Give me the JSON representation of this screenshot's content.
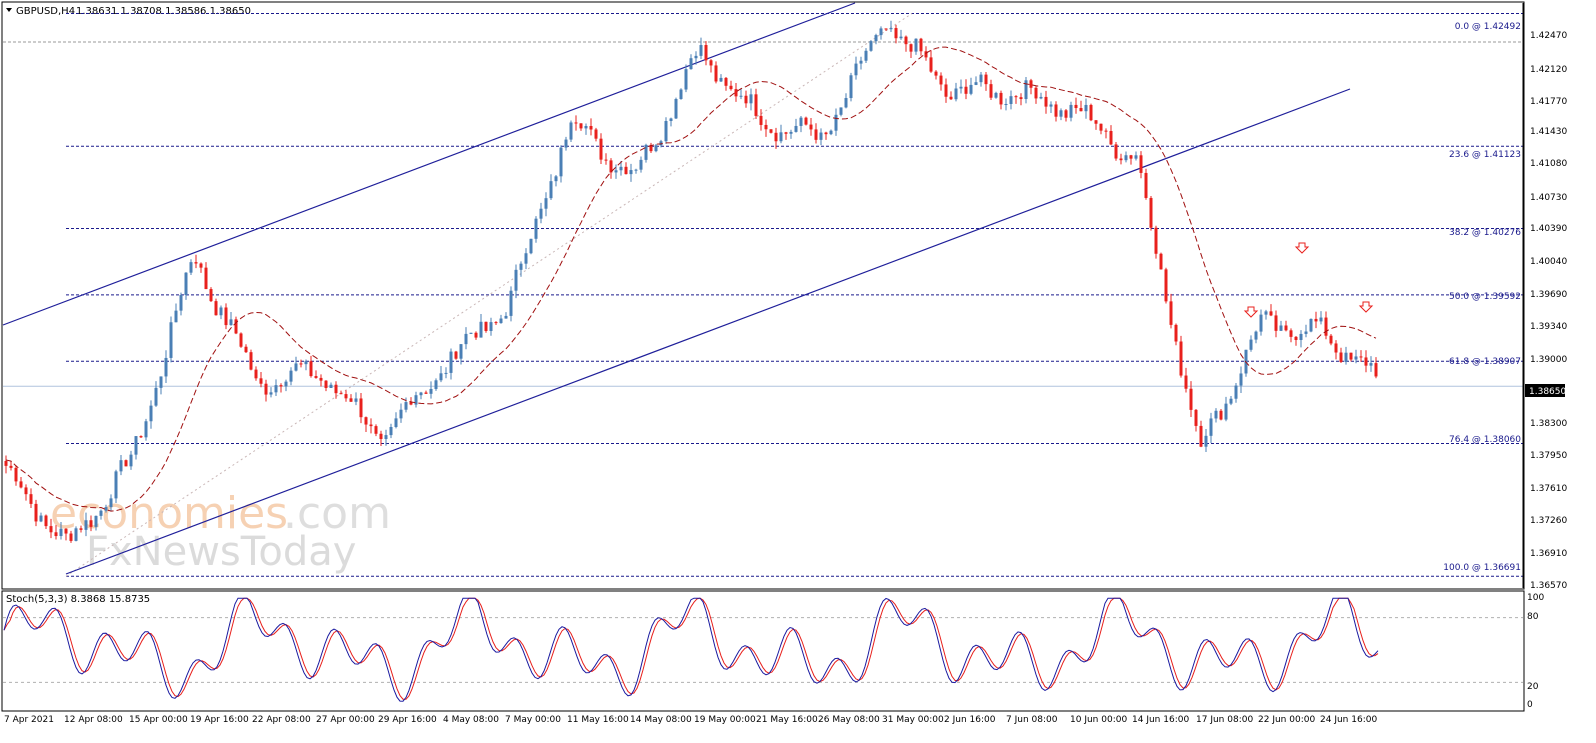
{
  "header": {
    "symbol_label": "GBPUSD,H4",
    "ohlc_label": "1.38631 1.38708 1.38586 1.38650"
  },
  "watermark": {
    "brand_main": "economies",
    "brand_domain": ".com",
    "brand_sub": "FxNewsToday"
  },
  "price_axis": {
    "ticks": [
      "1.42470",
      "1.42120",
      "1.41770",
      "1.41430",
      "1.41080",
      "1.40730",
      "1.40390",
      "1.40040",
      "1.39690",
      "1.39340",
      "1.39000",
      "1.38650",
      "1.38300",
      "1.37950",
      "1.37610",
      "1.37260",
      "1.36910",
      "1.36570"
    ],
    "current_price": "1.38650"
  },
  "time_axis": {
    "labels": [
      "7 Apr 2021",
      "12 Apr 08:00",
      "15 Apr 00:00",
      "19 Apr 16:00",
      "22 Apr 08:00",
      "27 Apr 00:00",
      "29 Apr 16:00",
      "4 May 08:00",
      "7 May 00:00",
      "11 May 16:00",
      "14 May 08:00",
      "19 May 00:00",
      "21 May 16:00",
      "26 May 08:00",
      "31 May 00:00",
      "2 Jun 16:00",
      "7 Jun 08:00",
      "10 Jun 00:00",
      "14 Jun 16:00",
      "17 Jun 08:00",
      "22 Jun 00:00",
      "24 Jun 16:00"
    ]
  },
  "fibonacci": [
    {
      "label": "0.0 @ 1.42492",
      "price": 1.42492
    },
    {
      "label": "23.6 @ 1.41123",
      "price": 1.41123
    },
    {
      "label": "38.2 @ 1.40276",
      "price": 1.40276
    },
    {
      "label": "50.0 @ 1.39592",
      "price": 1.39592
    },
    {
      "label": "61.8 @ 1.38907",
      "price": 1.38907
    },
    {
      "label": "76.4 @ 1.38060",
      "price": 1.3806
    },
    {
      "label": "100.0 @ 1.36691",
      "price": 1.36691
    }
  ],
  "stochastic": {
    "label": "Stoch(5,3,3) 8.3868 15.8735",
    "ticks": [
      "100",
      "80",
      "20",
      "0"
    ],
    "levels": [
      80,
      20
    ]
  },
  "colors": {
    "bull": "#4a7fb5",
    "bear": "#e8201c",
    "ma": "#a01010",
    "fib": "#1a1a8c",
    "channel": "#1f1f9a",
    "stoch_main": "#1a1aa0",
    "stoch_signal": "#e8201c"
  },
  "chart_data": {
    "type": "candlestick",
    "symbol": "GBPUSD",
    "timeframe": "H4",
    "ylim": [
      1.3657,
      1.426
    ],
    "waypoints": [
      {
        "t": "7 Apr 2021",
        "price": 1.378
      },
      {
        "t": "12 Apr 08:00",
        "price": 1.37
      },
      {
        "t": "15 Apr 00:00",
        "price": 1.379
      },
      {
        "t": "19 Apr 16:00",
        "price": 1.4
      },
      {
        "t": "22 Apr 08:00",
        "price": 1.387
      },
      {
        "t": "27 Apr 00:00",
        "price": 1.388
      },
      {
        "t": "29 Apr 16:00",
        "price": 1.381
      },
      {
        "t": "4 May 08:00",
        "price": 1.389
      },
      {
        "t": "7 May 00:00",
        "price": 1.395
      },
      {
        "t": "11 May 16:00",
        "price": 1.414
      },
      {
        "t": "14 May 08:00",
        "price": 1.408
      },
      {
        "t": "19 May 00:00",
        "price": 1.421
      },
      {
        "t": "21 May 16:00",
        "price": 1.414
      },
      {
        "t": "26 May 08:00",
        "price": 1.412
      },
      {
        "t": "31 May 00:00",
        "price": 1.424
      },
      {
        "t": "2 Jun 16:00",
        "price": 1.417
      },
      {
        "t": "7 Jun 08:00",
        "price": 1.417
      },
      {
        "t": "10 Jun 00:00",
        "price": 1.415
      },
      {
        "t": "14 Jun 16:00",
        "price": 1.41
      },
      {
        "t": "17 Jun 08:00",
        "price": 1.38
      },
      {
        "t": "22 Jun 00:00",
        "price": 1.393
      },
      {
        "t": "24 Jun 16:00",
        "price": 1.392
      },
      {
        "t": "latest",
        "price": 1.3865
      }
    ],
    "last_close": 1.3865
  }
}
